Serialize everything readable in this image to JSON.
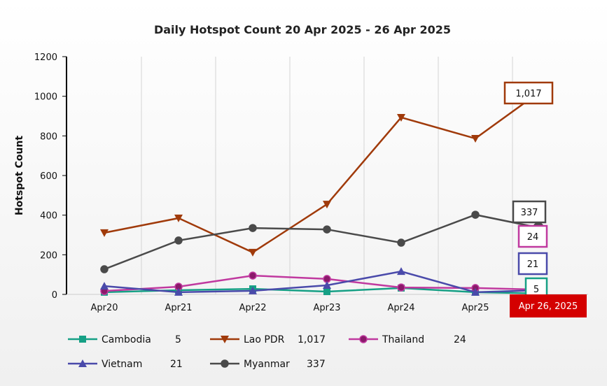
{
  "chart_data": {
    "type": "line",
    "title": "Daily Hotspot Count 20 Apr 2025 - 26 Apr 2025",
    "xlabel": "",
    "ylabel": "Hotspot Count",
    "ylim": [
      0,
      1200
    ],
    "yticks": [
      "0",
      "200",
      "400",
      "600",
      "800",
      "1000",
      "1200"
    ],
    "categories": [
      "Apr20",
      "Apr21",
      "Apr22",
      "Apr23",
      "Apr24",
      "Apr25",
      "Apr26"
    ],
    "crosshair_label": "Apr 26, 2025",
    "legend_placement": "bottom",
    "series": [
      {
        "name": "Cambodia",
        "color": "#16a085",
        "marker": "square",
        "values": [
          11,
          21,
          28,
          14,
          32,
          11,
          5
        ],
        "last_label": "5"
      },
      {
        "name": "Lao PDR",
        "color": "#a03a0a",
        "marker": "triangle-down",
        "values": [
          311,
          385,
          212,
          455,
          893,
          787,
          1017
        ],
        "last_label": "1,017"
      },
      {
        "name": "Thailand",
        "color": "#c0399f",
        "marker": "circle",
        "values": [
          17,
          39,
          95,
          78,
          35,
          32,
          24
        ],
        "last_label": "24"
      },
      {
        "name": "Vietnam",
        "color": "#4a4aaa",
        "marker": "triangle-up",
        "values": [
          42,
          11,
          18,
          46,
          116,
          11,
          21
        ],
        "last_label": "21"
      },
      {
        "name": "Myanmar",
        "color": "#4a4a4a",
        "marker": "circle",
        "values": [
          127,
          272,
          335,
          328,
          261,
          402,
          337
        ],
        "last_label": "337"
      }
    ]
  }
}
